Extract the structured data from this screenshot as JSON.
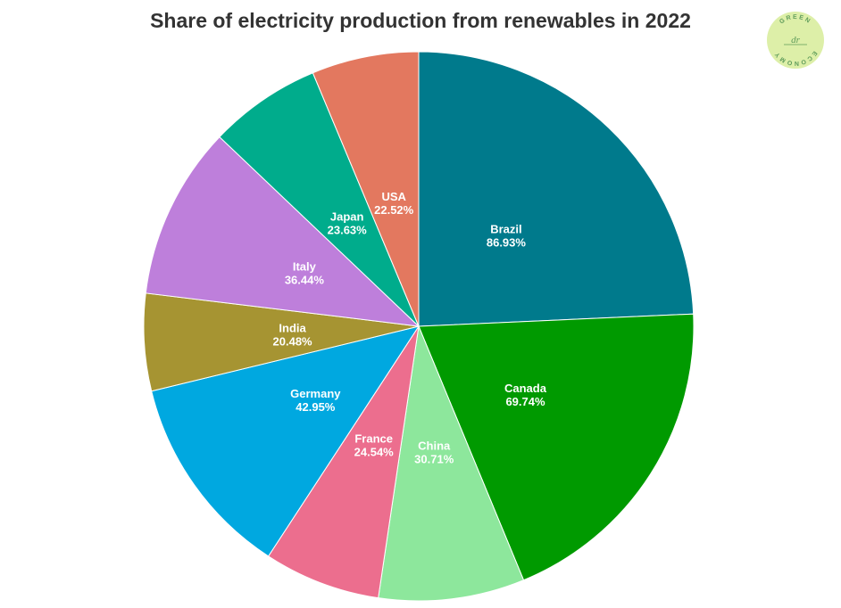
{
  "chart_data": {
    "type": "pie",
    "title": "Share of electricity production from renewables in 2022",
    "slices": [
      {
        "label": "Brazil",
        "value": 86.93,
        "value_text": "86.93%",
        "color": "#007A8C"
      },
      {
        "label": "Canada",
        "value": 69.74,
        "value_text": "69.74%",
        "color": "#009A00"
      },
      {
        "label": "China",
        "value": 30.71,
        "value_text": "30.71%",
        "color": "#8DE79C"
      },
      {
        "label": "France",
        "value": 24.54,
        "value_text": "24.54%",
        "color": "#EC6E8E"
      },
      {
        "label": "Germany",
        "value": 42.95,
        "value_text": "42.95%",
        "color": "#00A8E0"
      },
      {
        "label": "India",
        "value": 20.48,
        "value_text": "20.48%",
        "color": "#A69432"
      },
      {
        "label": "Italy",
        "value": 36.44,
        "value_text": "36.44%",
        "color": "#BE7FDB"
      },
      {
        "label": "Japan",
        "value": 23.63,
        "value_text": "23.63%",
        "color": "#00AC8C"
      },
      {
        "label": "USA",
        "value": 22.52,
        "value_text": "22.52%",
        "color": "#E3785F"
      }
    ],
    "legend": "none"
  },
  "logo": {
    "ring_text": "GREEN ECONOMY",
    "monogram": "dr",
    "colors": {
      "fill": "#DDEFA8",
      "text": "#5E9B5A"
    }
  }
}
